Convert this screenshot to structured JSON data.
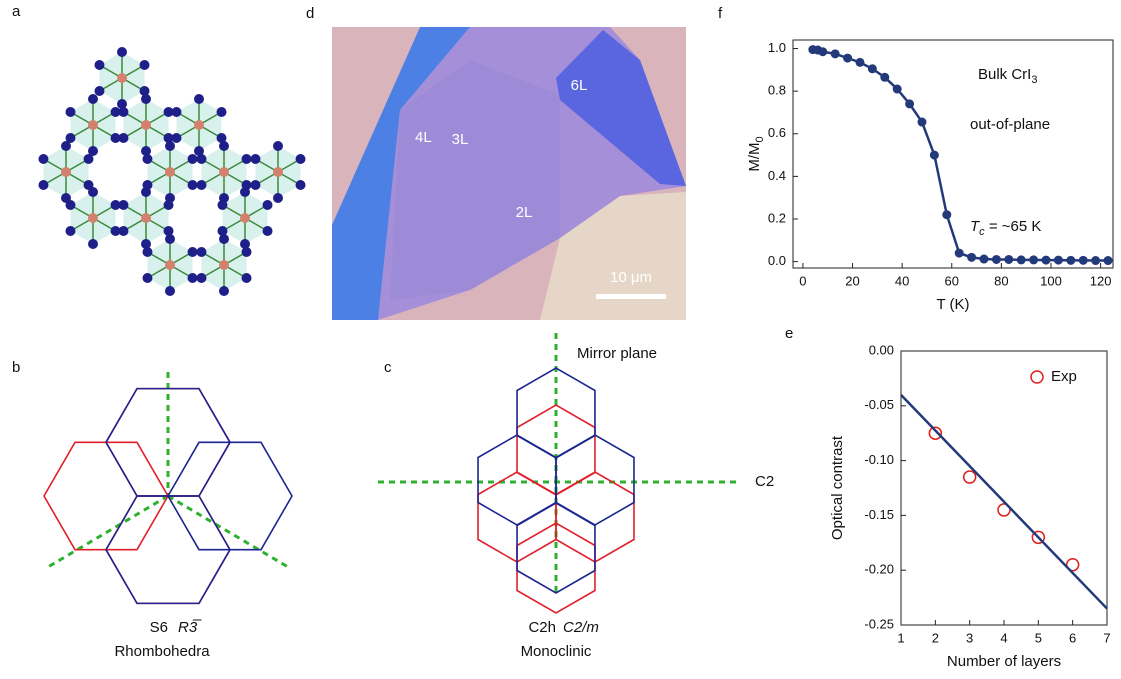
{
  "panel_labels": [
    "a",
    "b",
    "c",
    "d",
    "e",
    "f"
  ],
  "micrograph": {
    "labels": [
      "4L",
      "3L",
      "6L",
      "2L"
    ],
    "scale_bar": "10 μm"
  },
  "diagram_b": {
    "point_group": "S6",
    "space_group": "R3̅",
    "name": "Rhombohedra"
  },
  "diagram_c": {
    "point_group": "C2h",
    "space_group": "C2/m",
    "name": "Monoclinic",
    "mirror_label": "Mirror plane",
    "axis_label": "C2"
  },
  "chart_data": [
    {
      "type": "line",
      "xlabel": "T (K)",
      "ylabel": "M/M",
      "ylabel_sub": "0",
      "annotations": [
        {
          "text": "Bulk  CrI",
          "sub": "3"
        },
        {
          "text": "out-of-plane"
        },
        {
          "text": "T",
          "sub": "c",
          "after": " = ~65 K"
        }
      ],
      "xlim": [
        -4,
        125
      ],
      "ylim": [
        -0.03,
        1.04
      ],
      "xticks": [
        0,
        20,
        40,
        60,
        80,
        100,
        120
      ],
      "yticks": [
        {
          "value": 0,
          "label": "0.0"
        },
        0.2,
        0.4,
        0.6,
        0.8,
        {
          "value": 1,
          "label": "1.0"
        }
      ],
      "series": [
        {
          "color": "#233a7a",
          "marker": "circle",
          "x": [
            4,
            6,
            8,
            13,
            18,
            23,
            28,
            33,
            38,
            43,
            48,
            53,
            58,
            63,
            68,
            73,
            78,
            83,
            88,
            93,
            98,
            103,
            108,
            113,
            118,
            123
          ],
          "values": [
            0.995,
            0.993,
            0.985,
            0.975,
            0.955,
            0.935,
            0.905,
            0.865,
            0.81,
            0.74,
            0.655,
            0.5,
            0.22,
            0.04,
            0.02,
            0.012,
            0.01,
            0.01,
            0.008,
            0.008,
            0.007,
            0.007,
            0.006,
            0.006,
            0.005,
            0.005
          ]
        }
      ]
    },
    {
      "type": "scatter",
      "xlabel": "Number of layers",
      "ylabel": "Optical contrast",
      "xlim": [
        1,
        7
      ],
      "ylim": [
        -0.25,
        0
      ],
      "xticks": [
        1,
        2,
        3,
        4,
        5,
        6,
        7
      ],
      "yticks": [
        {
          "value": -0.25,
          "label": "-0.25"
        },
        {
          "value": -0.2,
          "label": "-0.20"
        },
        -0.15,
        {
          "value": -0.1,
          "label": "-0.10"
        },
        -0.05,
        {
          "value": 0,
          "label": "0.00"
        }
      ],
      "legend": "upper right",
      "series": [
        {
          "name": "Exp",
          "color": "#e0201b",
          "marker": "open-circle",
          "x": [
            2,
            3,
            4,
            5,
            6
          ],
          "values": [
            -0.075,
            -0.115,
            -0.145,
            -0.17,
            -0.195
          ]
        },
        {
          "color": "#233a7a",
          "style": "line",
          "x": [
            1,
            7
          ],
          "values": [
            -0.04,
            -0.235
          ]
        }
      ]
    }
  ]
}
